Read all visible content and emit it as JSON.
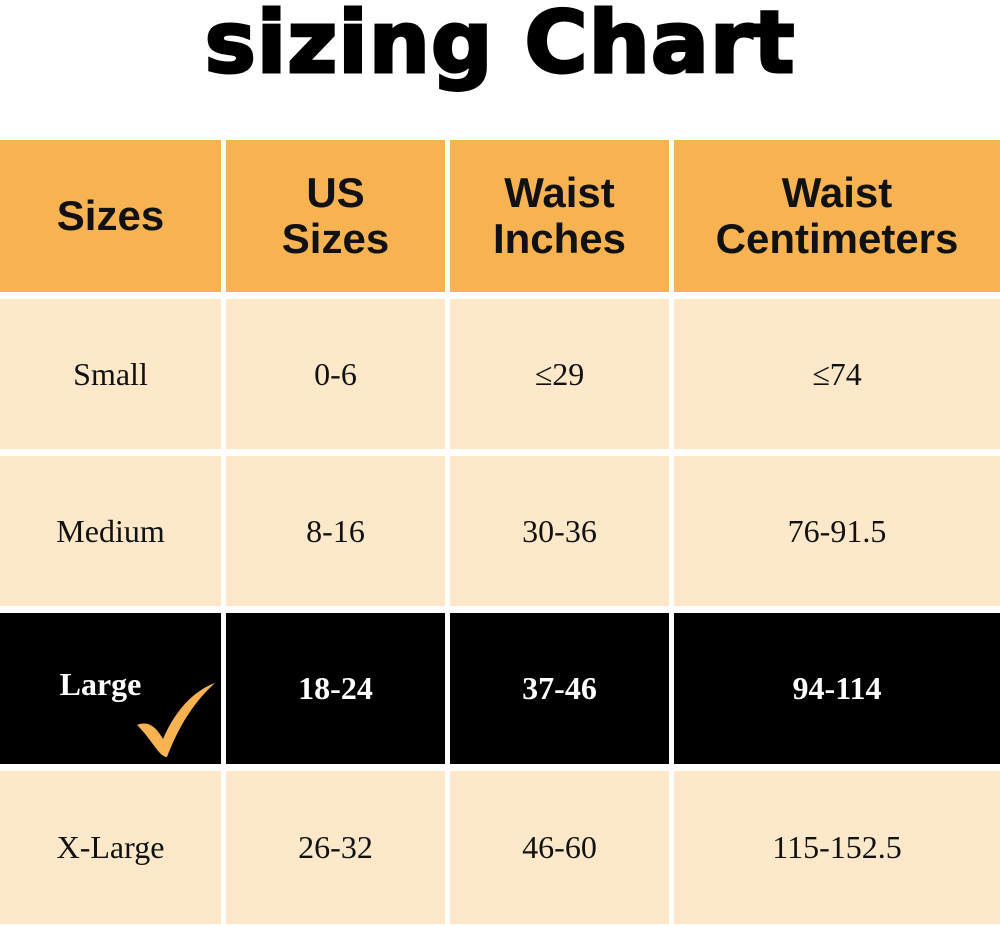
{
  "title": "sizing Chart",
  "table": {
    "header": [
      "Sizes",
      "US Sizes",
      "Waist Inches",
      "Waist Centimeters"
    ],
    "rows": [
      [
        "Small",
        "0-6",
        "≤29",
        "≤74"
      ],
      [
        "Medium",
        "8-16",
        "30-36",
        "76-91.5"
      ],
      [
        "Large",
        "18-24",
        "37-46",
        "94-114"
      ],
      [
        "X-Large",
        "26-32",
        "46-60",
        "115-152.5"
      ]
    ]
  }
}
